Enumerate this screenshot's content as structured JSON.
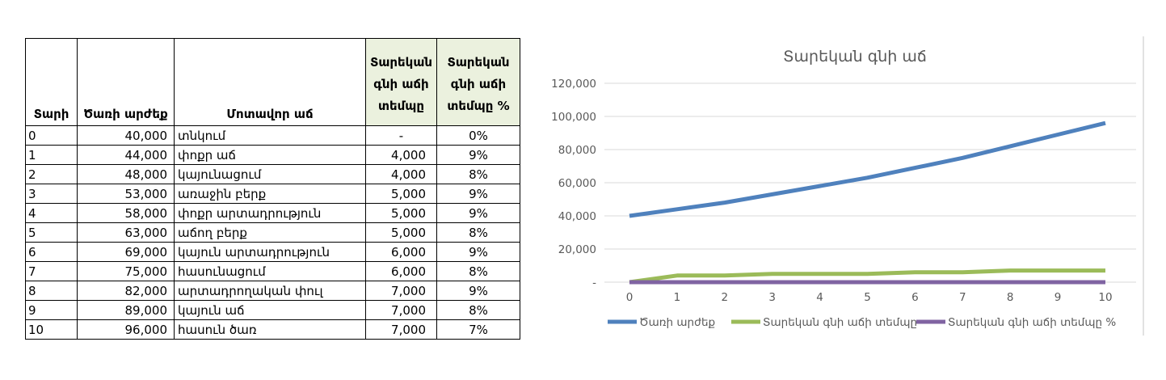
{
  "table": {
    "columns": [
      {
        "key": "year",
        "label": "Տարի"
      },
      {
        "key": "value",
        "label": "Ծառի արժեք"
      },
      {
        "key": "name",
        "label": "Մոտավոր աճ"
      },
      {
        "key": "growth",
        "label": "Տարեկան գնի աճի տեմպը"
      },
      {
        "key": "pct",
        "label": "Տարեկան գնի աճի տեմպը %"
      }
    ],
    "header_highlight_bg": "#EBF1DE",
    "rows": [
      [
        "0",
        "40,000",
        "տնկում",
        "-",
        "0%"
      ],
      [
        "1",
        "44,000",
        "փոքր աճ",
        "4,000",
        "9%"
      ],
      [
        "2",
        "48,000",
        "կայունացում",
        "4,000",
        "8%"
      ],
      [
        "3",
        "53,000",
        "առաջին բերք",
        "5,000",
        "9%"
      ],
      [
        "4",
        "58,000",
        "փոքր արտադրություն",
        "5,000",
        "9%"
      ],
      [
        "5",
        "63,000",
        "աճող բերք",
        "5,000",
        "8%"
      ],
      [
        "6",
        "69,000",
        "կայուն արտադրություն",
        "6,000",
        "9%"
      ],
      [
        "7",
        "75,000",
        "հասունացում",
        "6,000",
        "8%"
      ],
      [
        "8",
        "82,000",
        "արտադրողական փուլ",
        "7,000",
        "9%"
      ],
      [
        "9",
        "89,000",
        "կայուն աճ",
        "7,000",
        "8%"
      ],
      [
        "10",
        "96,000",
        "հասուն ծառ",
        "7,000",
        "7%"
      ]
    ]
  },
  "chart_data": {
    "type": "line",
    "title": "Տարեկան գնի աճ",
    "x": [
      0,
      1,
      2,
      3,
      4,
      5,
      6,
      7,
      8,
      9,
      10
    ],
    "xtick_labels": [
      "0",
      "1",
      "2",
      "3",
      "4",
      "5",
      "6",
      "7",
      "8",
      "9",
      "10"
    ],
    "series": [
      {
        "name": "Ծառի արժեք",
        "color": "#4F81BD",
        "values": [
          40000,
          44000,
          48000,
          53000,
          58000,
          63000,
          69000,
          75000,
          82000,
          89000,
          96000
        ]
      },
      {
        "name": "Տարեկան գնի աճի տեմպը",
        "color": "#9BBB59",
        "values": [
          0,
          4000,
          4000,
          5000,
          5000,
          5000,
          6000,
          6000,
          7000,
          7000,
          7000
        ]
      },
      {
        "name": "Տարեկան գնի աճի տեմպը %",
        "color": "#8064A2",
        "values": [
          0,
          0.09,
          0.08,
          0.09,
          0.09,
          0.08,
          0.09,
          0.08,
          0.09,
          0.08,
          0.07
        ]
      }
    ],
    "ylim": [
      0,
      120000
    ],
    "ytick_step": 20000,
    "ytick_labels_bottom_up": [
      "-",
      "20,000",
      "40,000",
      "60,000",
      "80,000",
      "100,000",
      "120,000"
    ],
    "grid": true,
    "legend_position": "bottom",
    "text_color": "#595959",
    "grid_color": "#D9D9D9"
  }
}
